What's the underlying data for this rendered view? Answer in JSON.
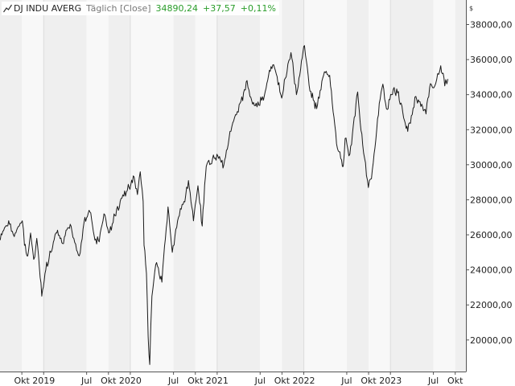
{
  "legend": {
    "name": "DJ INDU AVERG",
    "mode": "Täglich [Close]",
    "last_value": "34890,24",
    "change": "+37,57",
    "change_pct": "+0,11%",
    "positive_color": "#2a9d2a"
  },
  "chart_data": {
    "type": "line",
    "title": "",
    "xlabel": "",
    "ylabel": "",
    "y_unit": "$",
    "ylim": [
      18200,
      39400
    ],
    "xlim": [
      "2018-07-01",
      "2023-11-15"
    ],
    "grid": "vertical",
    "legend_position": "top-left",
    "y_ticks": [
      20000,
      22000,
      24000,
      26000,
      28000,
      30000,
      32000,
      34000,
      36000,
      38000
    ],
    "y_tick_labels": [
      "20000,00",
      "22000,00",
      "24000,00",
      "26000,00",
      "28000,00",
      "30000,00",
      "32000,00",
      "34000,00",
      "36000,00",
      "38000,00"
    ],
    "x_ticks": [
      {
        "date": "2018-10-01",
        "label": "Okt"
      },
      {
        "date": "2019-01-01",
        "label": "2019"
      },
      {
        "date": "2019-07-01",
        "label": "Jul"
      },
      {
        "date": "2019-10-01",
        "label": "Okt"
      },
      {
        "date": "2020-01-01",
        "label": "2020"
      },
      {
        "date": "2020-07-01",
        "label": "Jul"
      },
      {
        "date": "2020-10-01",
        "label": "Okt"
      },
      {
        "date": "2021-01-01",
        "label": "2021"
      },
      {
        "date": "2021-07-01",
        "label": "Jul"
      },
      {
        "date": "2021-10-01",
        "label": "Okt"
      },
      {
        "date": "2022-01-01",
        "label": "2022"
      },
      {
        "date": "2022-07-01",
        "label": "Jul"
      },
      {
        "date": "2022-10-01",
        "label": "Okt"
      },
      {
        "date": "2023-01-01",
        "label": "2023"
      },
      {
        "date": "2023-07-01",
        "label": "Jul"
      },
      {
        "date": "2023-10-01",
        "label": "Okt"
      }
    ],
    "series": [
      {
        "color": "#1a1a1a",
        "points": [
          [
            "2018-07-02",
            25700
          ],
          [
            "2018-07-20",
            26400
          ],
          [
            "2018-08-10",
            26600
          ],
          [
            "2018-08-30",
            25900
          ],
          [
            "2018-09-20",
            26500
          ],
          [
            "2018-10-03",
            26800
          ],
          [
            "2018-10-12",
            25400
          ],
          [
            "2018-10-26",
            24800
          ],
          [
            "2018-11-07",
            26100
          ],
          [
            "2018-11-20",
            24600
          ],
          [
            "2018-12-03",
            25800
          ],
          [
            "2018-12-14",
            24100
          ],
          [
            "2018-12-24",
            22500
          ],
          [
            "2019-01-10",
            24000
          ],
          [
            "2019-01-31",
            25000
          ],
          [
            "2019-02-25",
            26100
          ],
          [
            "2019-03-22",
            25500
          ],
          [
            "2019-04-23",
            26600
          ],
          [
            "2019-05-31",
            24800
          ],
          [
            "2019-06-20",
            26700
          ],
          [
            "2019-07-15",
            27300
          ],
          [
            "2019-08-05",
            25700
          ],
          [
            "2019-08-23",
            25600
          ],
          [
            "2019-09-12",
            27200
          ],
          [
            "2019-10-02",
            26100
          ],
          [
            "2019-10-28",
            27100
          ],
          [
            "2019-11-27",
            28100
          ],
          [
            "2019-12-27",
            28700
          ],
          [
            "2020-01-17",
            29300
          ],
          [
            "2020-01-31",
            28300
          ],
          [
            "2020-02-12",
            29600
          ],
          [
            "2020-02-24",
            27900
          ],
          [
            "2020-02-28",
            25400
          ],
          [
            "2020-03-09",
            23800
          ],
          [
            "2020-03-16",
            20200
          ],
          [
            "2020-03-23",
            18600
          ],
          [
            "2020-04-01",
            22500
          ],
          [
            "2020-04-17",
            24300
          ],
          [
            "2020-05-13",
            23300
          ],
          [
            "2020-06-08",
            27600
          ],
          [
            "2020-06-26",
            25000
          ],
          [
            "2020-07-22",
            27000
          ],
          [
            "2020-08-14",
            27900
          ],
          [
            "2020-09-02",
            29100
          ],
          [
            "2020-09-23",
            26800
          ],
          [
            "2020-10-12",
            28800
          ],
          [
            "2020-10-30",
            26500
          ],
          [
            "2020-11-16",
            29900
          ],
          [
            "2020-12-31",
            30600
          ],
          [
            "2021-01-29",
            29980
          ],
          [
            "2021-02-24",
            31900
          ],
          [
            "2021-03-31",
            33000
          ],
          [
            "2021-05-07",
            34800
          ],
          [
            "2021-05-19",
            33900
          ],
          [
            "2021-06-18",
            33300
          ],
          [
            "2021-07-19",
            33960
          ],
          [
            "2021-08-16",
            35600
          ],
          [
            "2021-09-03",
            35400
          ],
          [
            "2021-09-30",
            33800
          ],
          [
            "2021-10-26",
            35750
          ],
          [
            "2021-11-08",
            36400
          ],
          [
            "2021-12-01",
            34000
          ],
          [
            "2021-12-29",
            36500
          ],
          [
            "2022-01-04",
            36800
          ],
          [
            "2022-01-27",
            34200
          ],
          [
            "2022-02-24",
            33200
          ],
          [
            "2022-03-29",
            35300
          ],
          [
            "2022-04-20",
            35100
          ],
          [
            "2022-05-19",
            31200
          ],
          [
            "2022-06-16",
            29900
          ],
          [
            "2022-06-24",
            31500
          ],
          [
            "2022-07-14",
            30600
          ],
          [
            "2022-08-16",
            34150
          ],
          [
            "2022-09-06",
            31150
          ],
          [
            "2022-09-30",
            28700
          ],
          [
            "2022-10-13",
            29200
          ],
          [
            "2022-11-15",
            33500
          ],
          [
            "2022-11-30",
            34600
          ],
          [
            "2022-12-15",
            33200
          ],
          [
            "2023-01-13",
            34300
          ],
          [
            "2023-01-31",
            34100
          ],
          [
            "2023-02-22",
            33000
          ],
          [
            "2023-03-15",
            31900
          ],
          [
            "2023-04-18",
            33900
          ],
          [
            "2023-05-02",
            33600
          ],
          [
            "2023-05-31",
            32900
          ],
          [
            "2023-06-15",
            34400
          ],
          [
            "2023-07-03",
            34400
          ],
          [
            "2023-07-19",
            35200
          ],
          [
            "2023-08-01",
            35650
          ],
          [
            "2023-08-18",
            34500
          ],
          [
            "2023-08-31",
            34890
          ]
        ]
      }
    ]
  }
}
